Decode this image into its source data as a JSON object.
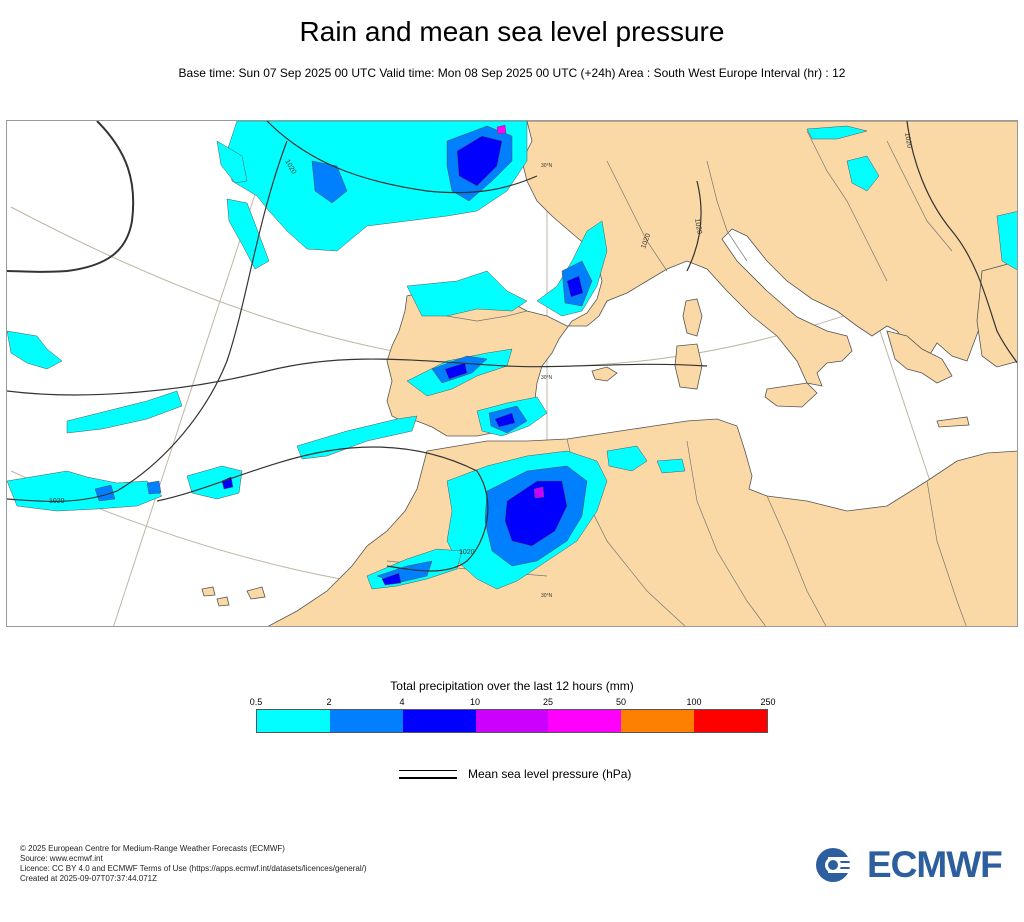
{
  "header": {
    "title": "Rain and mean sea level pressure",
    "subtitle": "Base time: Sun 07 Sep 2025 00 UTC Valid time: Mon 08 Sep 2025 00 UTC (+24h) Area : South West Europe Interval (hr) : 12"
  },
  "map": {
    "region": "South West Europe",
    "colors": {
      "land": "#fbd9a6",
      "sea": "#ffffff",
      "coast": "#555555",
      "isobar": "#333333",
      "graticule": "#bfb6a4"
    },
    "isobar_labels": [
      "1020",
      "1020",
      "1020",
      "1020",
      "1020",
      "1020"
    ],
    "graticule_labels": [
      "30°N",
      "30°N",
      "30°N"
    ]
  },
  "legend": {
    "title": "Total precipitation over the last 12 hours (mm)",
    "thresholds": [
      "0.5",
      "2",
      "4",
      "10",
      "25",
      "50",
      "100",
      "250"
    ],
    "colors": [
      "#00ffff",
      "#0080ff",
      "#0000ff",
      "#cc00ff",
      "#ff00ff",
      "#ff8000",
      "#ff0000"
    ],
    "pressure_label": "Mean sea level pressure (hPa)"
  },
  "footer": {
    "copyright": "© 2025 European Centre for Medium-Range Weather Forecasts (ECMWF)",
    "source": "Source: www.ecmwf.int",
    "licence": "Licence: CC BY 4.0 and ECMWF Terms of Use (https://apps.ecmwf.int/datasets/licences/general/)",
    "created": "Created at 2025-09-07T07:37:44.071Z",
    "logo_text": "ECMWF"
  }
}
